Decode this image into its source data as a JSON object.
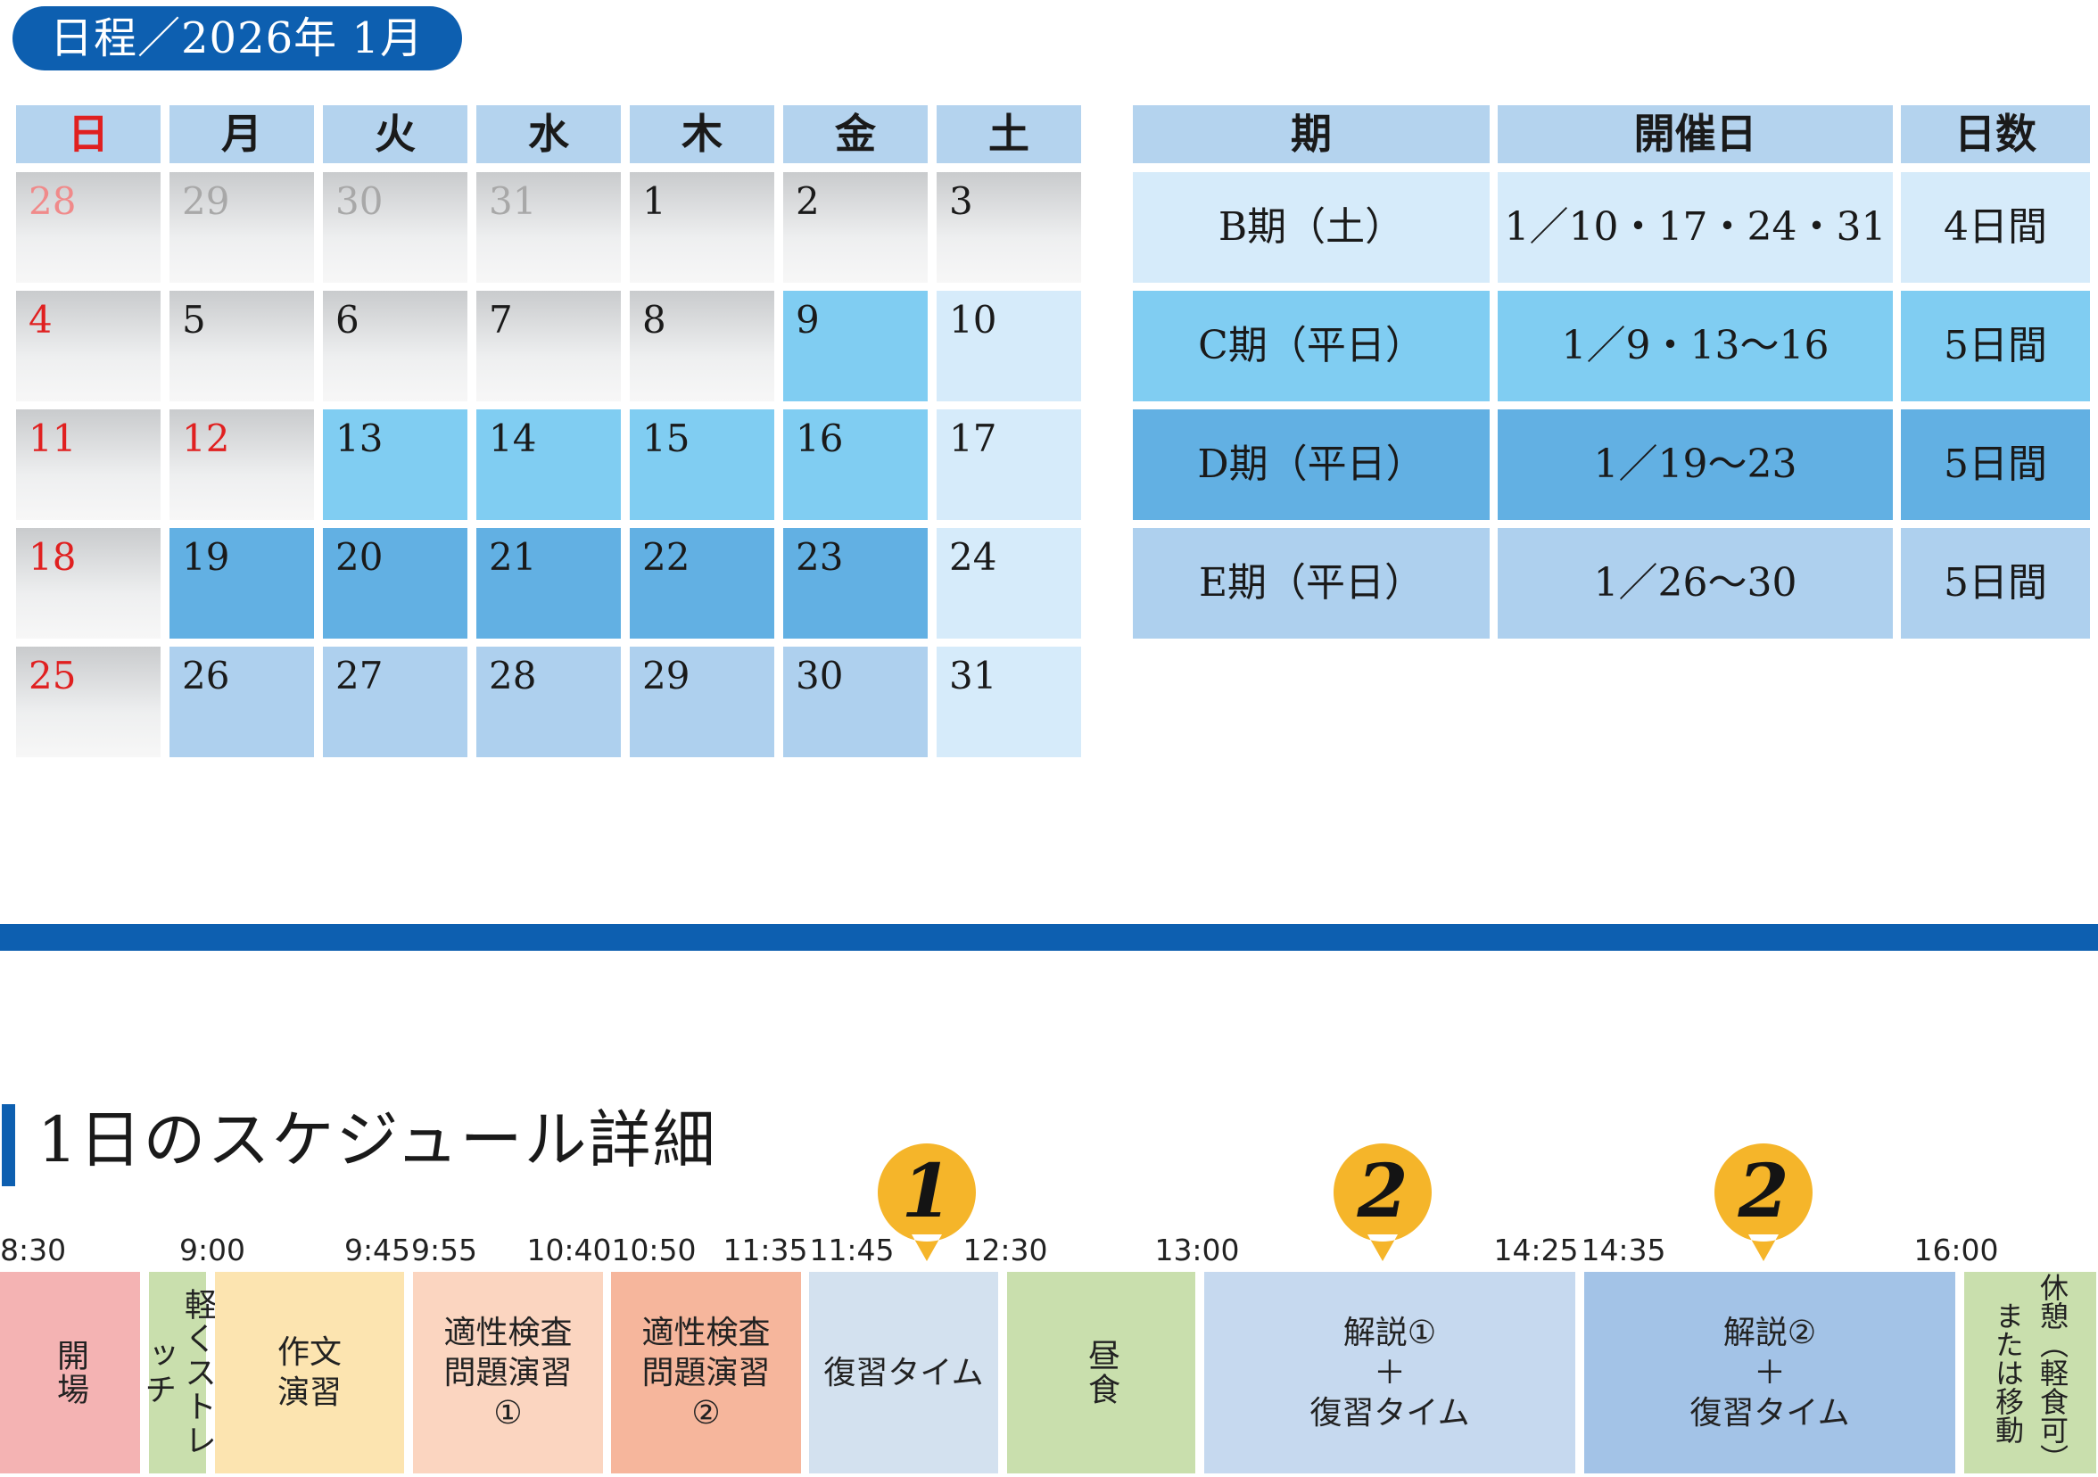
{
  "header": {
    "title": "日程／2026年 1月"
  },
  "calendar": {
    "weekdays": [
      "日",
      "月",
      "火",
      "水",
      "木",
      "金",
      "土"
    ],
    "weeks": [
      [
        "28",
        "29",
        "30",
        "31",
        "1",
        "2",
        "3"
      ],
      [
        "4",
        "5",
        "6",
        "7",
        "8",
        "9",
        "10"
      ],
      [
        "11",
        "12",
        "13",
        "14",
        "15",
        "16",
        "17"
      ],
      [
        "18",
        "19",
        "20",
        "21",
        "22",
        "23",
        "24"
      ],
      [
        "25",
        "26",
        "27",
        "28",
        "29",
        "30",
        "31"
      ]
    ],
    "period_colors": {
      "B": "#d6ebfa",
      "C": "#80cdf2",
      "D": "#62b0e3",
      "E": "#aed0ee"
    },
    "holiday_color": "#e02020"
  },
  "periods": {
    "headers": [
      "期",
      "開催日",
      "日数"
    ],
    "rows": [
      {
        "name": "B期（土）",
        "dates": "1／10・17・24・31",
        "days": "4日間"
      },
      {
        "name": "C期（平日）",
        "dates": "1／9・13〜16",
        "days": "5日間"
      },
      {
        "name": "D期（平日）",
        "dates": "1／19〜23",
        "days": "5日間"
      },
      {
        "name": "E期（平日）",
        "dates": "1／26〜30",
        "days": "5日間"
      }
    ]
  },
  "schedule": {
    "title": "1日のスケジュール詳細",
    "times": [
      "8:30",
      "9:00",
      "9:45",
      "9:55",
      "10:40",
      "10:50",
      "11:35",
      "11:45",
      "12:30",
      "13:00",
      "14:25",
      "14:35",
      "16:00"
    ],
    "blocks": [
      {
        "label": "開場",
        "color": "#f4b3b3"
      },
      {
        "label": "軽くストレッチ",
        "color": "#c9dfad"
      },
      {
        "line1": "作文",
        "line2": "演習",
        "color": "#fce4b0"
      },
      {
        "line1": "適性検査",
        "line2": "問題演習",
        "line3": "①",
        "color": "#fbd5c0"
      },
      {
        "line1": "適性検査",
        "line2": "問題演習",
        "line3": "②",
        "color": "#f6b69c"
      },
      {
        "label": "復習タイム",
        "color": "#d3e1ef"
      },
      {
        "label": "昼食",
        "color": "#c9dfad"
      },
      {
        "line1": "解説①",
        "line2": "＋",
        "line3": "復習タイム",
        "color": "#c6d9ef"
      },
      {
        "line1": "解説②",
        "line2": "＋",
        "line3": "復習タイム",
        "color": "#a3c3e7"
      },
      {
        "col1": "休憩（軽食可）",
        "col2": "または移動",
        "color": "#c9dfad"
      }
    ],
    "badges": [
      "1",
      "2",
      "2"
    ],
    "badge_color": "#f5b52a"
  }
}
